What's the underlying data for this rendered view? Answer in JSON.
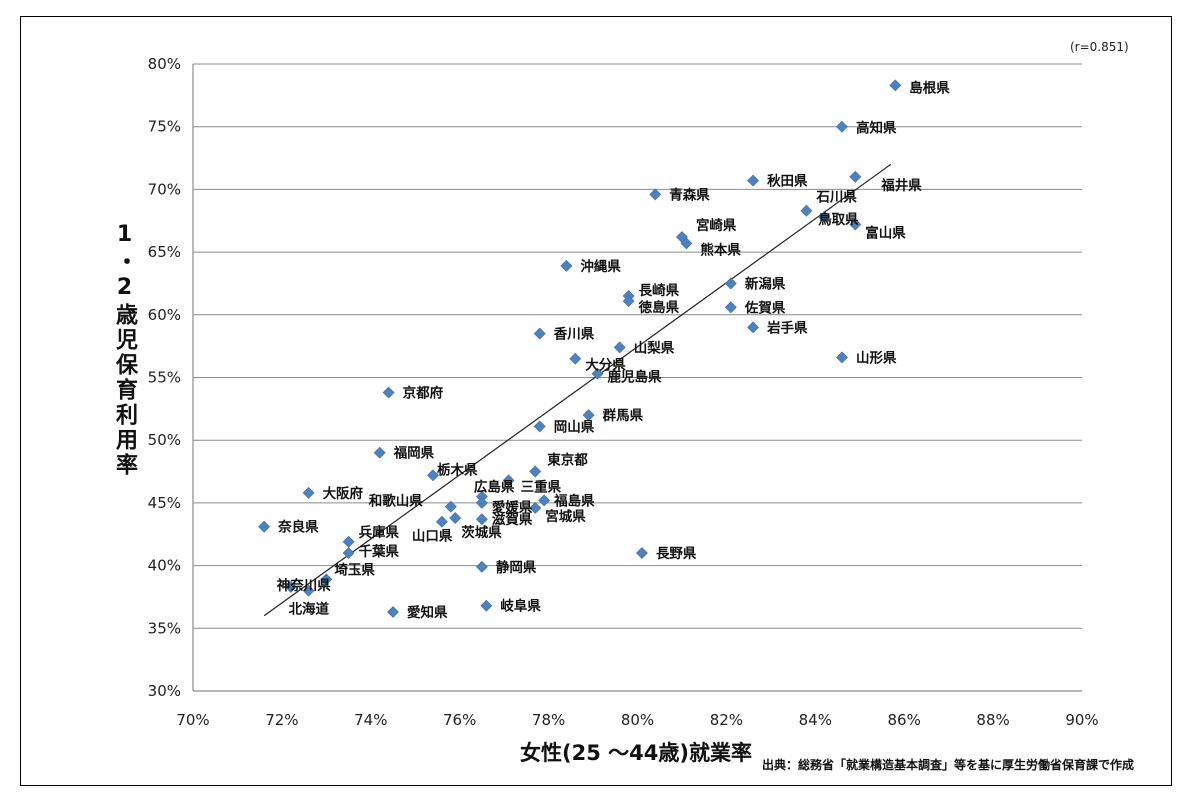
{
  "chart_data": {
    "type": "scatter",
    "title": "",
    "xlabel": "女性(25 ～44歳)就業率",
    "ylabel": "1・2歳児保育利用率",
    "xlim": [
      70,
      90
    ],
    "ylim": [
      30,
      80
    ],
    "x_ticks": [
      "70%",
      "72%",
      "74%",
      "76%",
      "78%",
      "80%",
      "82%",
      "84%",
      "86%",
      "88%",
      "90%"
    ],
    "y_ticks": [
      "30%",
      "35%",
      "40%",
      "45%",
      "50%",
      "55%",
      "60%",
      "65%",
      "70%",
      "75%",
      "80%"
    ],
    "grid": "horizontal",
    "correlation_label": "(r=0.851)",
    "trendline": {
      "x": [
        71.6,
        85.7
      ],
      "y": [
        36.0,
        72.0
      ]
    },
    "marker_color": "#4F81BD",
    "points": [
      {
        "name": "島根県",
        "x": 85.8,
        "y": 78.3
      },
      {
        "name": "高知県",
        "x": 84.6,
        "y": 75.0
      },
      {
        "name": "福井県",
        "x": 84.9,
        "y": 71.0
      },
      {
        "name": "秋田県",
        "x": 82.6,
        "y": 70.7
      },
      {
        "name": "青森県",
        "x": 80.4,
        "y": 69.6
      },
      {
        "name": "石川県",
        "x": 83.8,
        "y": 68.3
      },
      {
        "name": "鳥取県",
        "x": 84.2,
        "y": 67.8
      },
      {
        "name": "富山県",
        "x": 84.9,
        "y": 67.2
      },
      {
        "name": "宮崎県",
        "x": 81.0,
        "y": 66.2
      },
      {
        "name": "熊本県",
        "x": 81.1,
        "y": 65.7
      },
      {
        "name": "沖縄県",
        "x": 78.4,
        "y": 63.9
      },
      {
        "name": "新潟県",
        "x": 82.1,
        "y": 62.5
      },
      {
        "name": "長崎県",
        "x": 79.8,
        "y": 61.5
      },
      {
        "name": "徳島県",
        "x": 79.8,
        "y": 61.1
      },
      {
        "name": "佐賀県",
        "x": 82.1,
        "y": 60.6
      },
      {
        "name": "岩手県",
        "x": 82.6,
        "y": 59.0
      },
      {
        "name": "香川県",
        "x": 77.8,
        "y": 58.5
      },
      {
        "name": "山梨県",
        "x": 79.6,
        "y": 57.4
      },
      {
        "name": "大分県",
        "x": 78.6,
        "y": 56.5
      },
      {
        "name": "山形県",
        "x": 84.6,
        "y": 56.6
      },
      {
        "name": "鹿児島県",
        "x": 79.1,
        "y": 55.3
      },
      {
        "name": "京都府",
        "x": 74.4,
        "y": 53.8
      },
      {
        "name": "群馬県",
        "x": 78.9,
        "y": 52.0
      },
      {
        "name": "岡山県",
        "x": 77.8,
        "y": 51.1
      },
      {
        "name": "福岡県",
        "x": 74.2,
        "y": 49.0
      },
      {
        "name": "東京都",
        "x": 77.7,
        "y": 47.5
      },
      {
        "name": "栃木県",
        "x": 75.4,
        "y": 47.2
      },
      {
        "name": "三重県",
        "x": 77.1,
        "y": 46.8
      },
      {
        "name": "広島県",
        "x": 76.5,
        "y": 45.5
      },
      {
        "name": "大阪府",
        "x": 72.6,
        "y": 45.8
      },
      {
        "name": "愛媛県",
        "x": 76.5,
        "y": 45.0
      },
      {
        "name": "福島県",
        "x": 77.9,
        "y": 45.2
      },
      {
        "name": "和歌山県",
        "x": 75.8,
        "y": 44.7
      },
      {
        "name": "宮城県",
        "x": 77.7,
        "y": 44.6
      },
      {
        "name": "滋賀県",
        "x": 76.5,
        "y": 43.7
      },
      {
        "name": "奈良県",
        "x": 71.6,
        "y": 43.1
      },
      {
        "name": "茨城県",
        "x": 75.9,
        "y": 43.8
      },
      {
        "name": "山口県",
        "x": 75.6,
        "y": 43.5
      },
      {
        "name": "兵庫県",
        "x": 73.5,
        "y": 41.9
      },
      {
        "name": "千葉県",
        "x": 73.5,
        "y": 41.0
      },
      {
        "name": "長野県",
        "x": 80.1,
        "y": 41.0
      },
      {
        "name": "静岡県",
        "x": 76.5,
        "y": 39.9
      },
      {
        "name": "埼玉県",
        "x": 73.0,
        "y": 38.9
      },
      {
        "name": "神奈川県",
        "x": 72.2,
        "y": 38.3
      },
      {
        "name": "北海道",
        "x": 72.6,
        "y": 38.0
      },
      {
        "name": "愛知県",
        "x": 74.5,
        "y": 36.3
      },
      {
        "name": "岐阜県",
        "x": 76.6,
        "y": 36.8
      }
    ]
  },
  "source_note": "出典：総務省「就業構造基本調査」等を基に厚生労働省保育課で作成"
}
